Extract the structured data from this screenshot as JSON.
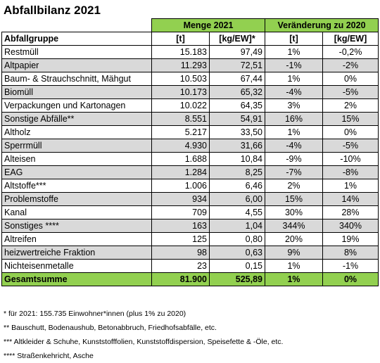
{
  "title": "Abfallbilanz 2021",
  "group_headers": {
    "menge": "Menge 2021",
    "veraenderung": "Veränderung zu 2020"
  },
  "columns": [
    "Abfallgruppe",
    "[t]",
    "[kg/EW]*",
    "[t]",
    "[kg/EW]"
  ],
  "rows": [
    [
      "Restmüll",
      "15.183",
      "97,49",
      "1%",
      "-0,2%"
    ],
    [
      "Altpapier",
      "11.293",
      "72,51",
      "-1%",
      "-2%"
    ],
    [
      "Baum- & Strauchschnitt, Mähgut",
      "10.503",
      "67,44",
      "1%",
      "0%"
    ],
    [
      "Biomüll",
      "10.173",
      "65,32",
      "-4%",
      "-5%"
    ],
    [
      "Verpackungen und Kartonagen",
      "10.022",
      "64,35",
      "3%",
      "2%"
    ],
    [
      "Sonstige Abfälle**",
      "8.551",
      "54,91",
      "16%",
      "15%"
    ],
    [
      "Altholz",
      "5.217",
      "33,50",
      "1%",
      "0%"
    ],
    [
      "Sperrmüll",
      "4.930",
      "31,66",
      "-4%",
      "-5%"
    ],
    [
      "Alteisen",
      "1.688",
      "10,84",
      "-9%",
      "-10%"
    ],
    [
      "EAG",
      "1.284",
      "8,25",
      "-7%",
      "-8%"
    ],
    [
      "Altstoffe***",
      "1.006",
      "6,46",
      "2%",
      "1%"
    ],
    [
      "Problemstoffe",
      "934",
      "6,00",
      "15%",
      "14%"
    ],
    [
      "Kanal",
      "709",
      "4,55",
      "30%",
      "28%"
    ],
    [
      "Sonstiges ****",
      "163",
      "1,04",
      "344%",
      "340%"
    ],
    [
      "Altreifen",
      "125",
      "0,80",
      "20%",
      "19%"
    ],
    [
      "heizwertreiche Fraktion",
      "98",
      "0,63",
      "9%",
      "8%"
    ],
    [
      "Nichteisenmetalle",
      "23",
      "0,15",
      "1%",
      "-1%"
    ]
  ],
  "total": [
    "Gesamtsumme",
    "81.900",
    "525,89",
    "1%",
    "0%"
  ],
  "footnotes": [
    "* für 2021: 155.735 Einwohner*innen (plus 1% zu 2020)",
    "** Bauschutt, Bodenaushub, Betonabbruch, Friedhofsabfälle, etc.",
    "*** Altkleider & Schuhe, Kunststofffolien, Kunststoffdispersion, Speisefette & -Öle, etc.",
    "**** Straßenkehricht, Asche"
  ],
  "colors": {
    "green": "#92d050",
    "grey_row": "#d9d9d9"
  }
}
